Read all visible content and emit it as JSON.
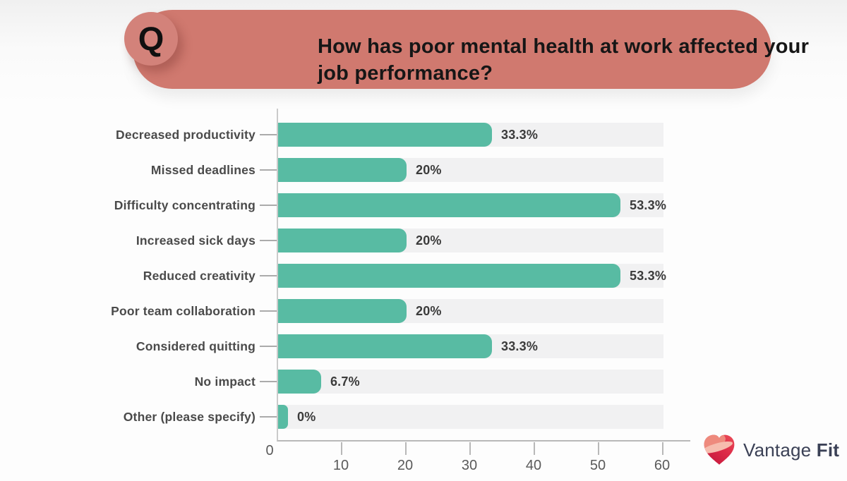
{
  "header": {
    "q_badge": "Q",
    "title": "How has poor mental health at work affected your job performance?",
    "title_lines": [
      "How has poor mental health at work affected your",
      "job performance?"
    ]
  },
  "chart_data": {
    "type": "bar",
    "orientation": "horizontal",
    "categories": [
      "Decreased productivity",
      "Missed deadlines",
      "Difficulty concentrating",
      "Increased sick days",
      "Reduced creativity",
      "Poor team collaboration",
      "Considered quitting",
      "No impact",
      "Other (please specify)"
    ],
    "values": [
      33.3,
      20,
      53.3,
      20,
      53.3,
      20,
      33.3,
      6.7,
      0
    ],
    "value_labels": [
      "33.3%",
      "20%",
      "53.3%",
      "20%",
      "53.3%",
      "20%",
      "33.3%",
      "6.7%",
      "0%"
    ],
    "x_ticks": [
      0,
      10,
      20,
      30,
      40,
      50,
      60
    ],
    "xlim": [
      0,
      60
    ],
    "grid": false,
    "legend_position": "none",
    "bar_color": "#58bba3",
    "track_color": "#f1f1f2"
  },
  "branding": {
    "name_regular": "Vantage",
    "name_bold": "Fit",
    "logo_icon": "heart-icon"
  },
  "colors": {
    "banner_bg": "#d0796f",
    "badge_bg": "#d3827a",
    "title_text": "#161616",
    "category_text": "#4a4a4a",
    "value_text": "#3b3b3b",
    "axis_text": "#5a5a5a",
    "brand_text": "#3b4156"
  }
}
